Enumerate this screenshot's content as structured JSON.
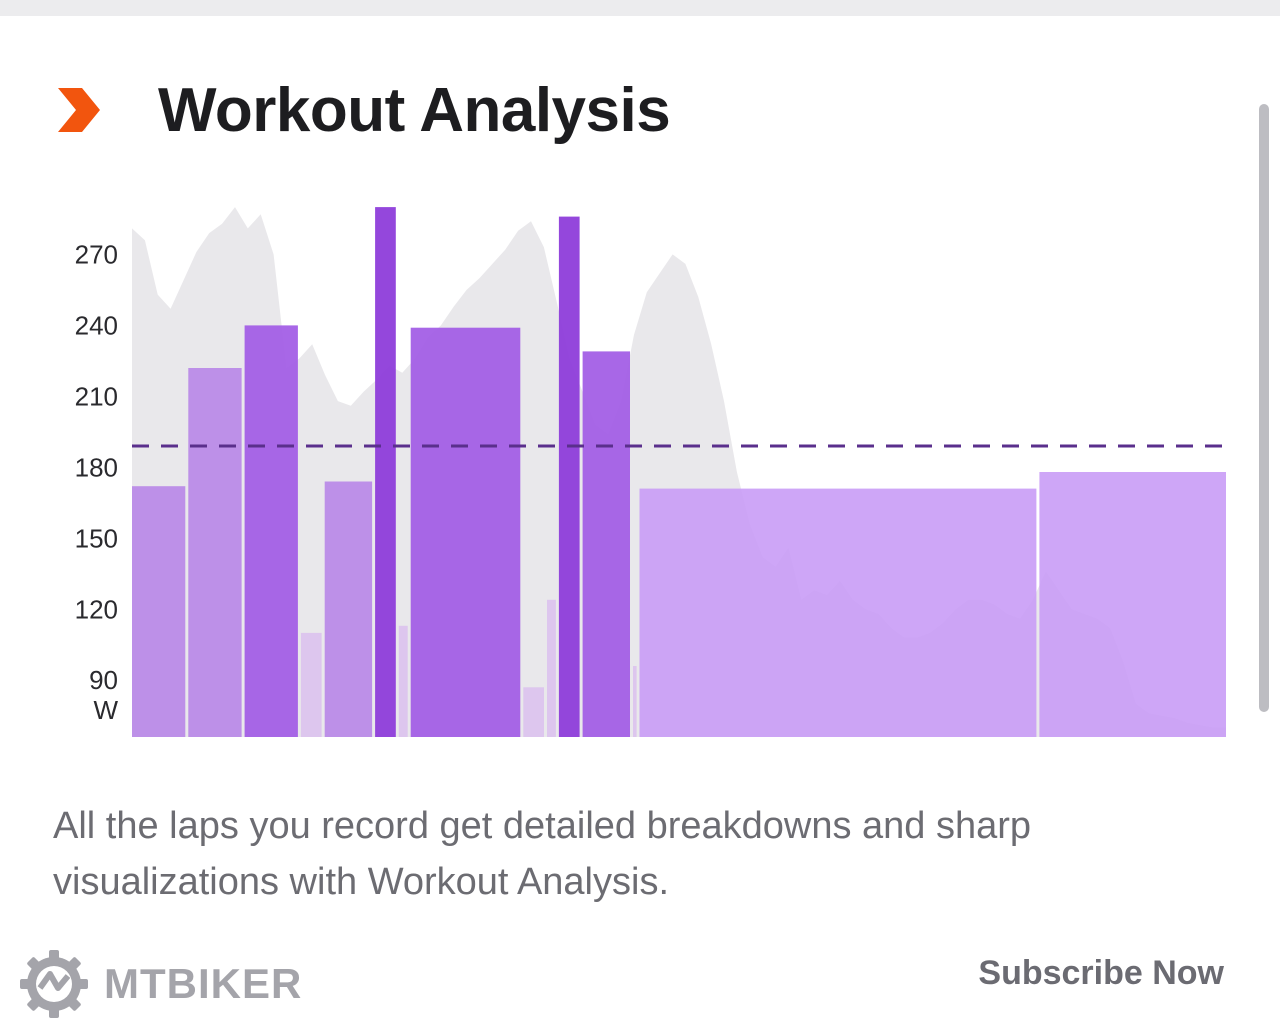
{
  "header": {
    "title": "Workout Analysis",
    "icon": "chevron-right-icon",
    "icon_color": "#f2550e"
  },
  "chart_data": {
    "type": "bar",
    "unit_label": "W",
    "y_ticks": [
      "270",
      "240",
      "210",
      "180",
      "150",
      "120",
      "90"
    ],
    "ylim": [
      66,
      293
    ],
    "average_line": 189,
    "grid": false,
    "laps": [
      {
        "duration": 9,
        "value": 172
      },
      {
        "duration": 9,
        "value": 222
      },
      {
        "duration": 9,
        "value": 240
      },
      {
        "duration": 3.5,
        "value": 110
      },
      {
        "duration": 8,
        "value": 174
      },
      {
        "duration": 3.5,
        "value": 290
      },
      {
        "duration": 1.5,
        "value": 113
      },
      {
        "duration": 18.5,
        "value": 239
      },
      {
        "duration": 3.5,
        "value": 87
      },
      {
        "duration": 1.5,
        "value": 124
      },
      {
        "duration": 3.5,
        "value": 286
      },
      {
        "duration": 8,
        "value": 229
      },
      {
        "duration": 0.6,
        "value": 96
      },
      {
        "duration": 67,
        "value": 171
      },
      {
        "duration": 31.5,
        "value": 178
      }
    ],
    "background_series": [
      281,
      276,
      253,
      247,
      259,
      271,
      279,
      283,
      290,
      281,
      287,
      270,
      222,
      226,
      232,
      219,
      208,
      206,
      212,
      217,
      223,
      220,
      226,
      235,
      240,
      248,
      255,
      260,
      266,
      272,
      280,
      284,
      273,
      250,
      226,
      212,
      198,
      194,
      208,
      236,
      254,
      262,
      270,
      266,
      252,
      232,
      208,
      178,
      156,
      142,
      138,
      146,
      124,
      128,
      126,
      132,
      124,
      120,
      118,
      112,
      108,
      108,
      110,
      114,
      120,
      124,
      124,
      122,
      118,
      116,
      124,
      136,
      128,
      120,
      118,
      116,
      112,
      98,
      80,
      76,
      75,
      74,
      72,
      71,
      70,
      70
    ],
    "colors": {
      "light": "#bb8be8",
      "medium": "#a35fe6",
      "dark": "#8e3dda",
      "pale": "#dcc4ee",
      "long": "#c79af6",
      "background_area": "#e9e8eb",
      "average_line": "#5a2f8c"
    }
  },
  "description": "All the laps you record get detailed breakdowns and sharp visualizations with Workout Analysis.",
  "footer": {
    "brand": "MTBIKER",
    "brand_icon": "gear-logo-icon",
    "cta": "Subscribe Now"
  }
}
